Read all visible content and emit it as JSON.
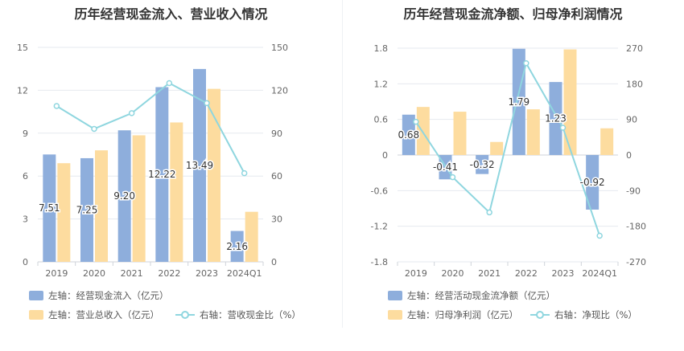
{
  "left": {
    "title": "历年经营现金流入、营业收入情况",
    "legend": {
      "bar1": "左轴：经营现金流入（亿元）",
      "bar2": "左轴：营业总收入（亿元）",
      "line": "右轴：营收现金比（%）"
    }
  },
  "right": {
    "title": "历年经营现金流净额、归母净利润情况",
    "legend": {
      "bar1": "左轴：经营活动现金流净额（亿元）",
      "bar2": "左轴：归母净利润（亿元）",
      "line": "右轴：净现比（%）"
    }
  },
  "colors": {
    "bar1": "#8eaedc",
    "bar2": "#fddc9f",
    "line": "#8fd6df",
    "grid": "#e6e9ef",
    "axis_text": "#666666"
  },
  "chart_data": [
    {
      "type": "bar",
      "title": "历年经营现金流入、营业收入情况",
      "categories": [
        "2019",
        "2020",
        "2021",
        "2022",
        "2023",
        "2024Q1"
      ],
      "left_axis": {
        "ticks": [
          0,
          3,
          6,
          9,
          12,
          15
        ],
        "ylim": [
          0,
          15
        ]
      },
      "right_axis": {
        "ticks": [
          0,
          30,
          60,
          90,
          120,
          150
        ],
        "ylim": [
          0,
          150
        ]
      },
      "series": [
        {
          "name": "左轴：经营现金流入（亿元）",
          "kind": "bar",
          "axis": "left",
          "values": [
            7.51,
            7.25,
            9.2,
            12.22,
            13.49,
            2.16
          ],
          "labels": [
            "7.51",
            "7.25",
            "9.20",
            "12.22",
            "13.49",
            "2.16"
          ]
        },
        {
          "name": "左轴：营业总收入（亿元）",
          "kind": "bar",
          "axis": "left",
          "values": [
            6.9,
            7.8,
            8.85,
            9.75,
            12.1,
            3.5
          ]
        },
        {
          "name": "右轴：营收现金比（%）",
          "kind": "line",
          "axis": "right",
          "values": [
            109,
            93,
            104,
            125,
            111,
            62
          ]
        }
      ]
    },
    {
      "type": "bar",
      "title": "历年经营现金流净额、归母净利润情况",
      "categories": [
        "2019",
        "2020",
        "2021",
        "2022",
        "2023",
        "2024Q1"
      ],
      "left_axis": {
        "ticks": [
          -1.8,
          -1.2,
          -0.6,
          0,
          0.6,
          1.2,
          1.8
        ],
        "tick_labels": [
          "-1.8",
          "-1.2",
          "-0.6",
          "0",
          "0.6",
          "1.2",
          "1.8"
        ],
        "ylim": [
          -1.8,
          1.8
        ]
      },
      "right_axis": {
        "ticks": [
          -270,
          -180,
          -90,
          0,
          90,
          180,
          270
        ],
        "ylim": [
          -270,
          270
        ]
      },
      "series": [
        {
          "name": "左轴：经营活动现金流净额（亿元）",
          "kind": "bar",
          "axis": "left",
          "values": [
            0.68,
            -0.41,
            -0.32,
            1.79,
            1.23,
            -0.92
          ],
          "labels": [
            "0.68",
            "-0.41",
            "-0.32",
            "1.79",
            "1.23",
            "-0.92"
          ]
        },
        {
          "name": "左轴：归母净利润（亿元）",
          "kind": "bar",
          "axis": "left",
          "values": [
            0.81,
            0.73,
            0.22,
            0.77,
            1.78,
            0.45
          ]
        },
        {
          "name": "右轴：净现比（%）",
          "kind": "line",
          "axis": "right",
          "values": [
            84,
            -56,
            -145,
            232,
            69,
            -204
          ]
        }
      ]
    }
  ]
}
